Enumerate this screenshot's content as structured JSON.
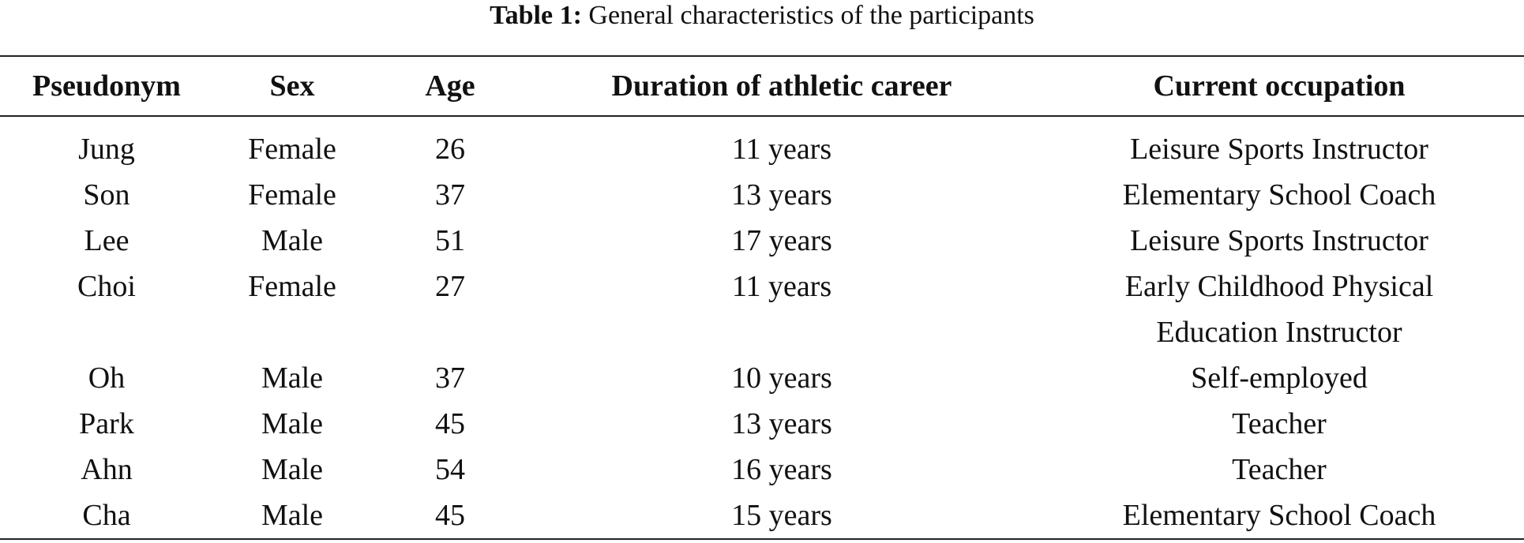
{
  "caption": {
    "label": "Table 1:",
    "text": "General characteristics of the participants"
  },
  "table": {
    "header": [
      "Pseudonym",
      "Sex",
      "Age",
      "Duration of athletic career",
      "Current occupation"
    ],
    "rows": [
      [
        "Jung",
        "Female",
        26,
        "11 years",
        "Leisure Sports Instructor"
      ],
      [
        "Son",
        "Female",
        37,
        "13 years",
        "Elementary School Coach"
      ],
      [
        "Lee",
        "Male",
        51,
        "17 years",
        "Leisure Sports Instructor"
      ],
      [
        "Choi",
        "Female",
        27,
        "11 years",
        "Early Childhood Physical Education Instructor"
      ],
      [
        "Oh",
        "Male",
        37,
        "10 years",
        "Self-employed"
      ],
      [
        "Park",
        "Male",
        45,
        "13 years",
        "Teacher"
      ],
      [
        "Ahn",
        "Male",
        54,
        "16 years",
        "Teacher"
      ],
      [
        "Cha",
        "Male",
        45,
        "15 years",
        "Elementary School Coach"
      ]
    ]
  }
}
